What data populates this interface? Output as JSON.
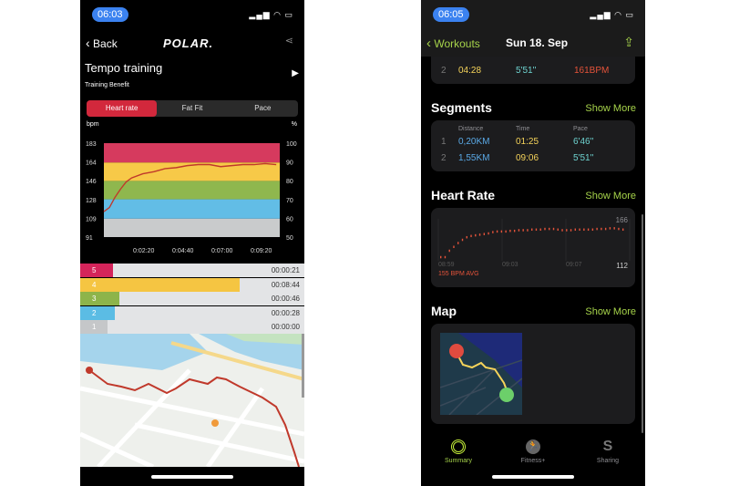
{
  "polar": {
    "status_time": "06:03",
    "back": "Back",
    "logo": "POLAR.",
    "title": "Tempo training",
    "subtitle": "Training Benefit",
    "tabs": [
      "Heart rate",
      "Fat Fit",
      "Pace"
    ],
    "active_tab": "Heart rate",
    "left_unit": "bpm",
    "right_unit": "%",
    "zones": [
      {
        "zone": "5",
        "duration": "00:00:21",
        "seconds": 21,
        "color": "#d4245a"
      },
      {
        "zone": "4",
        "duration": "00:08:44",
        "seconds": 524,
        "color": "#f5c542"
      },
      {
        "zone": "3",
        "duration": "00:00:46",
        "seconds": 46,
        "color": "#8db44a"
      },
      {
        "zone": "2",
        "duration": "00:00:28",
        "seconds": 28,
        "color": "#5bbce4"
      },
      {
        "zone": "1",
        "duration": "00:00:00",
        "seconds": 0,
        "color": "#c5c7c9"
      }
    ]
  },
  "chart_data": [
    {
      "type": "line",
      "title": "",
      "ylabel": "bpm",
      "y2label": "%",
      "ylim": [
        91,
        183
      ],
      "yticks": [
        "183",
        "164",
        "146",
        "128",
        "109",
        "91"
      ],
      "y2ticks": [
        "100",
        "90",
        "80",
        "70",
        "60",
        "50"
      ],
      "xticks": [
        "0:02:20",
        "0:04:40",
        "0:07:00",
        "0:09:20"
      ],
      "zone_bands": [
        {
          "from": 164,
          "to": 183,
          "color": "#d63a5e"
        },
        {
          "from": 146,
          "to": 164,
          "color": "#f7c948"
        },
        {
          "from": 128,
          "to": 146,
          "color": "#8fb74e"
        },
        {
          "from": 109,
          "to": 128,
          "color": "#62bde6"
        },
        {
          "from": 91,
          "to": 109,
          "color": "#c9cbcc"
        }
      ],
      "x_seconds": [
        0,
        20,
        40,
        60,
        80,
        100,
        140,
        180,
        220,
        260,
        300,
        340,
        380,
        420,
        460,
        500,
        540,
        580,
        620
      ],
      "values": [
        116,
        120,
        130,
        138,
        145,
        149,
        153,
        155,
        158,
        159,
        161,
        162,
        162,
        160,
        161,
        162,
        162,
        163,
        162
      ],
      "line_color": "#c0392b"
    },
    {
      "type": "scatter",
      "title": "",
      "ymax_label": "166",
      "ymin_label": "112",
      "xticks": [
        "08:59",
        "09:03",
        "09:07"
      ],
      "avg_label": "155 BPM AVG",
      "values": [
        118,
        118,
        128,
        134,
        140,
        145,
        149,
        151,
        152,
        153,
        154,
        155,
        157,
        158,
        158,
        158,
        159,
        159,
        160,
        160,
        160,
        161,
        161,
        161,
        162,
        162,
        162,
        161,
        160,
        160,
        160,
        161,
        161,
        161,
        161,
        161,
        162,
        162,
        162,
        163,
        163,
        162,
        161
      ],
      "point_color": "#e5533a"
    }
  ],
  "fitness": {
    "status_time": "06:05",
    "back": "Workouts",
    "title": "Sun 18. Sep",
    "split_row": {
      "index": "2",
      "time": "04:28",
      "pace": "5'51''",
      "hr": "161BPM"
    },
    "segments_title": "Segments",
    "show_more": "Show More",
    "segment_headers": [
      "Distance",
      "Time",
      "Pace"
    ],
    "segments": [
      {
        "index": "1",
        "distance": "0,20KM",
        "time": "01:25",
        "pace": "6'46''"
      },
      {
        "index": "2",
        "distance": "1,55KM",
        "time": "09:06",
        "pace": "5'51''"
      }
    ],
    "hr_title": "Heart Rate",
    "map_title": "Map",
    "tabbar": [
      "Summary",
      "Fitness+",
      "Sharing"
    ],
    "active_tab": "Summary",
    "accent": "#a6d34a"
  }
}
